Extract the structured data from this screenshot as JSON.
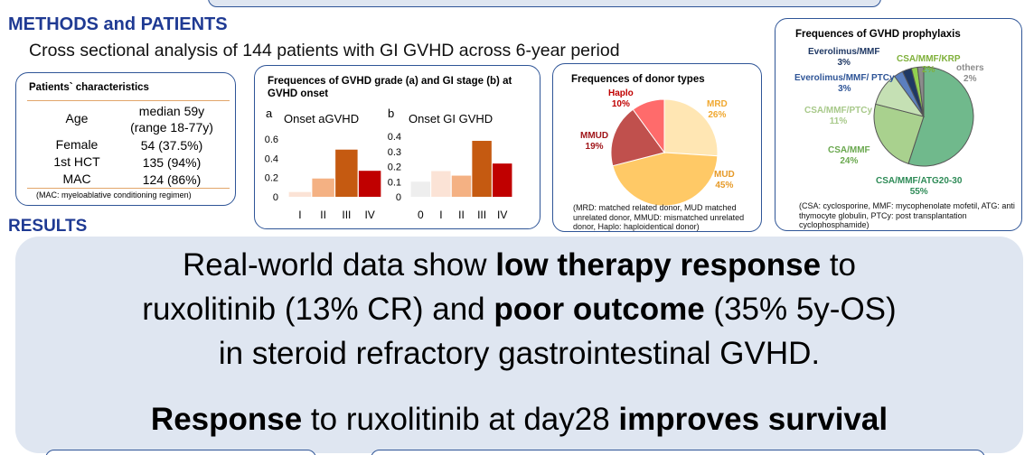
{
  "methods": {
    "heading": "METHODS and PATIENTS",
    "subtitle": "Cross sectional analysis of 144 patients with GI GVHD across 6-year period"
  },
  "characteristics": {
    "title": "Patients` characteristics",
    "rows": [
      {
        "label": "Age",
        "value": "median 59y",
        "value2": "(range 18-77y)"
      },
      {
        "label": "Female",
        "value": "54 (37.5%)"
      },
      {
        "label": "1st HCT",
        "value": "135 (94%)"
      },
      {
        "label": "MAC",
        "value": "124 (86%)"
      }
    ],
    "note": "(MAC: myeloablative conditioning regimen)"
  },
  "grade_panel": {
    "title": "Frequences of GVHD grade (a) and GI stage (b) at GVHD onset"
  },
  "chart_data": [
    {
      "type": "bar",
      "panel_letter": "a",
      "title": "Onset aGVHD",
      "categories": [
        "I",
        "II",
        "III",
        "IV"
      ],
      "values": [
        0.05,
        0.19,
        0.49,
        0.27
      ],
      "colors": [
        "#fbe3d6",
        "#f4b183",
        "#c55a11",
        "#c00000"
      ],
      "yticks": [
        "0",
        "0.2",
        "0.4",
        "0.6"
      ],
      "ylim": [
        0,
        0.6
      ],
      "grid": false
    },
    {
      "type": "bar",
      "panel_letter": "b",
      "title": "Onset GI GVHD",
      "categories": [
        "0",
        "I",
        "II",
        "III",
        "IV"
      ],
      "values": [
        0.1,
        0.17,
        0.14,
        0.37,
        0.22
      ],
      "colors": [
        "#eeeeee",
        "#fbe3d6",
        "#f4b183",
        "#c55a11",
        "#c00000"
      ],
      "yticks": [
        "0",
        "0.1",
        "0.2",
        "0.3",
        "0.4"
      ],
      "ylim": [
        0,
        0.4
      ],
      "grid": false
    },
    {
      "type": "pie",
      "title": "Frequences of donor types",
      "slices": [
        {
          "name": "MRD",
          "value": 26,
          "label": "MRD",
          "pct": "26%",
          "color": "#ffe6b3",
          "label_color": "#f0a830"
        },
        {
          "name": "MUD",
          "value": 45,
          "label": "MUD",
          "pct": "45%",
          "color": "#ffc966",
          "label_color": "#e69a28"
        },
        {
          "name": "MMUD",
          "value": 19,
          "label": "MMUD",
          "pct": "19%",
          "color": "#c0504d",
          "label_color": "#a0161a"
        },
        {
          "name": "Haplo",
          "value": 10,
          "label": "Haplo",
          "pct": "10%",
          "color": "#ff6b6b",
          "label_color": "#c00000"
        }
      ]
    },
    {
      "type": "pie",
      "title": "Frequences of GVHD prophylaxis",
      "slices": [
        {
          "name": "CSA/MMF/ATG20-30",
          "value": 55,
          "pct": "55%",
          "color": "#70b98c",
          "label_color": "#2e8b57"
        },
        {
          "name": "CSA/MMF",
          "value": 24,
          "pct": "24%",
          "color": "#a9d18e",
          "label_color": "#6aa84f"
        },
        {
          "name": "CSA/MMF/PTCy",
          "value": 11,
          "pct": "11%",
          "color": "#c5e0b4",
          "label_color": "#a8c98a"
        },
        {
          "name": "Everolimus/MMF/ PTCy",
          "value": 3,
          "pct": "3%",
          "color": "#5b7fbf",
          "label_color": "#2f5597"
        },
        {
          "name": "Everolimus/MMF",
          "value": 3,
          "pct": "3%",
          "color": "#1f3864",
          "label_color": "#1f3864"
        },
        {
          "name": "CSA/MMF/KRP",
          "value": 2,
          "pct": "2%",
          "color": "#92d050",
          "label_color": "#7fb03a"
        },
        {
          "name": "others",
          "value": 2,
          "pct": "2%",
          "color": "#8c8c8c",
          "label_color": "#8c8c8c"
        }
      ]
    }
  ],
  "donor_panel": {
    "note": "(MRD: matched related donor, MUD matched unrelated donor, MMUD: mismatched unrelated donor, Haplo: haploidentical donor)"
  },
  "proph_panel": {
    "note": "(CSA: cyclosporine, MMF: mycophenolate mofetil, ATG: anti thymocyte globulin, PTCy: post transplantation cyclophosphamide)"
  },
  "results": {
    "heading": "RESULTS",
    "line1a": "Real-world data show ",
    "line1b": "low therapy response",
    "line1c": " to",
    "line2a": "ruxolitinib (13% CR) and ",
    "line2b": "poor outcome",
    "line2c": " (35% 5y-OS)",
    "line3": "in steroid refractory gastrointestinal GVHD.",
    "line4a": "Response",
    "line4b": " to ruxolitinib at day28 ",
    "line4c": "improves survival"
  }
}
